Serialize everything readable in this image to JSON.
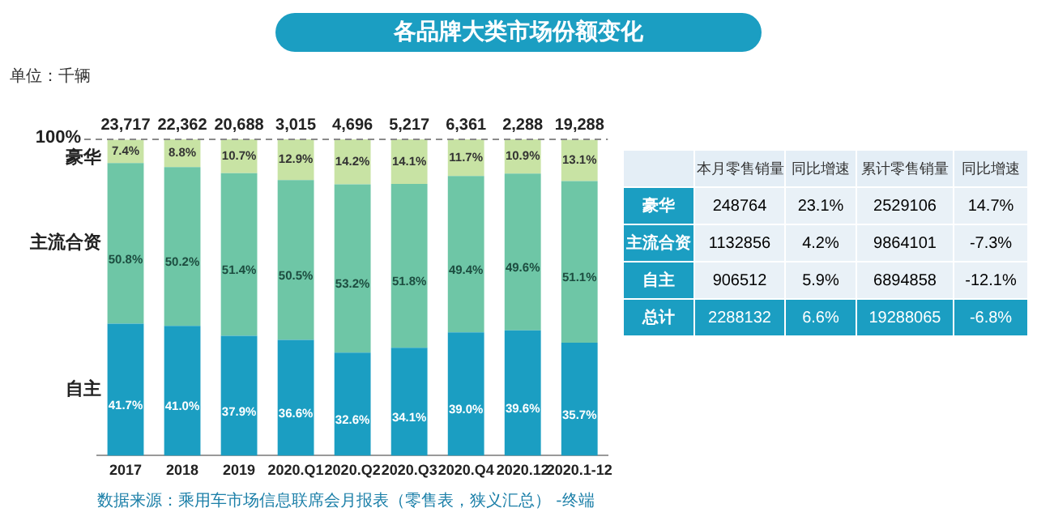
{
  "chart_data": [
    {
      "type": "bar",
      "title": "各品牌大类市场份额变化",
      "subtitle": "单位：千辆",
      "stacked": true,
      "legend": false,
      "grid": false,
      "categories": [
        "2017",
        "2018",
        "2019",
        "2020.Q1",
        "2020.Q2",
        "2020.Q3",
        "2020.Q4",
        "2020.12",
        "2020.1-12"
      ],
      "ylim": [
        0,
        100
      ],
      "series": [
        {
          "name": "自主",
          "color": "#1b9ec2",
          "values": [
            41.7,
            41.0,
            37.9,
            36.6,
            32.6,
            34.1,
            39.0,
            39.6,
            35.7
          ],
          "value_labels": [
            "41.7%",
            "41.0%",
            "37.9%",
            "36.6%",
            "32.6%",
            "34.1%",
            "39.0%",
            "39.6%",
            "35.7%"
          ]
        },
        {
          "name": "主流合资",
          "color": "#6ec6a6",
          "values": [
            50.8,
            50.2,
            51.4,
            50.5,
            53.2,
            51.8,
            49.4,
            49.6,
            51.1
          ],
          "value_labels": [
            "50.8%",
            "50.2%",
            "51.4%",
            "50.5%",
            "53.2%",
            "51.8%",
            "49.4%",
            "49.6%",
            "51.1%"
          ]
        },
        {
          "name": "豪华",
          "color": "#c8e3a4",
          "values": [
            7.4,
            8.8,
            10.7,
            12.9,
            14.2,
            14.1,
            11.7,
            10.9,
            13.1
          ],
          "value_labels": [
            "7.4%",
            "8.8%",
            "10.7%",
            "12.9%",
            "14.2%",
            "14.1%",
            "11.7%",
            "10.9%",
            "13.1%"
          ]
        }
      ],
      "ref_lines": [
        {
          "axis": "y",
          "value": 100,
          "label": "100%",
          "line_style": "dashed",
          "color": "#8a8a8a"
        }
      ],
      "annotations": [
        {
          "text": "23,717",
          "x": "2017",
          "y": 100
        },
        {
          "text": "22,362",
          "x": "2018",
          "y": 100
        },
        {
          "text": "20,688",
          "x": "2019",
          "y": 100
        },
        {
          "text": "3,015",
          "x": "2020.Q1",
          "y": 100
        },
        {
          "text": "4,696",
          "x": "2020.Q2",
          "y": 100
        },
        {
          "text": "5,217",
          "x": "2020.Q3",
          "y": 100
        },
        {
          "text": "6,361",
          "x": "2020.Q4",
          "y": 100
        },
        {
          "text": "2,288",
          "x": "2020.12",
          "y": 100
        },
        {
          "text": "19,288",
          "x": "2020.1-12",
          "y": 100
        },
        "数据来源：乘用车市场信息联席会月报表（零售表，狭义汇总） -终端"
      ]
    },
    {
      "type": "other",
      "data_labels": true,
      "categories": [
        "豪华",
        "主流合资",
        "自主",
        "总计"
      ],
      "series": [
        {
          "name": "本月零售销量",
          "colors": [
            "#e9f1f7",
            "#e9f1f7",
            "#e9f1f7",
            "#1b9ec2"
          ],
          "values": [
            248764,
            1132856,
            906512,
            2288132
          ]
        },
        {
          "name": "同比增速",
          "colors": [
            "#e9f1f7",
            "#e9f1f7",
            "#e9f1f7",
            "#1b9ec2"
          ],
          "values": [
            23.1,
            4.2,
            5.9,
            6.6
          ],
          "value_labels": [
            "23.1%",
            "4.2%",
            "5.9%",
            "6.6%"
          ]
        },
        {
          "name": "累计零售销量",
          "colors": [
            "#e9f1f7",
            "#e9f1f7",
            "#e9f1f7",
            "#1b9ec2"
          ],
          "values": [
            2529106,
            9864101,
            6894858,
            19288065
          ]
        },
        {
          "name": "同比增速",
          "colors": [
            "#e9f1f7",
            "#e9f1f7",
            "#e9f1f7",
            "#1b9ec2"
          ],
          "values": [
            14.7,
            -7.3,
            -12.1,
            -6.8
          ],
          "value_labels": [
            "14.7%",
            "-7.3%",
            "-12.1%",
            "-6.8%"
          ]
        }
      ]
    }
  ]
}
